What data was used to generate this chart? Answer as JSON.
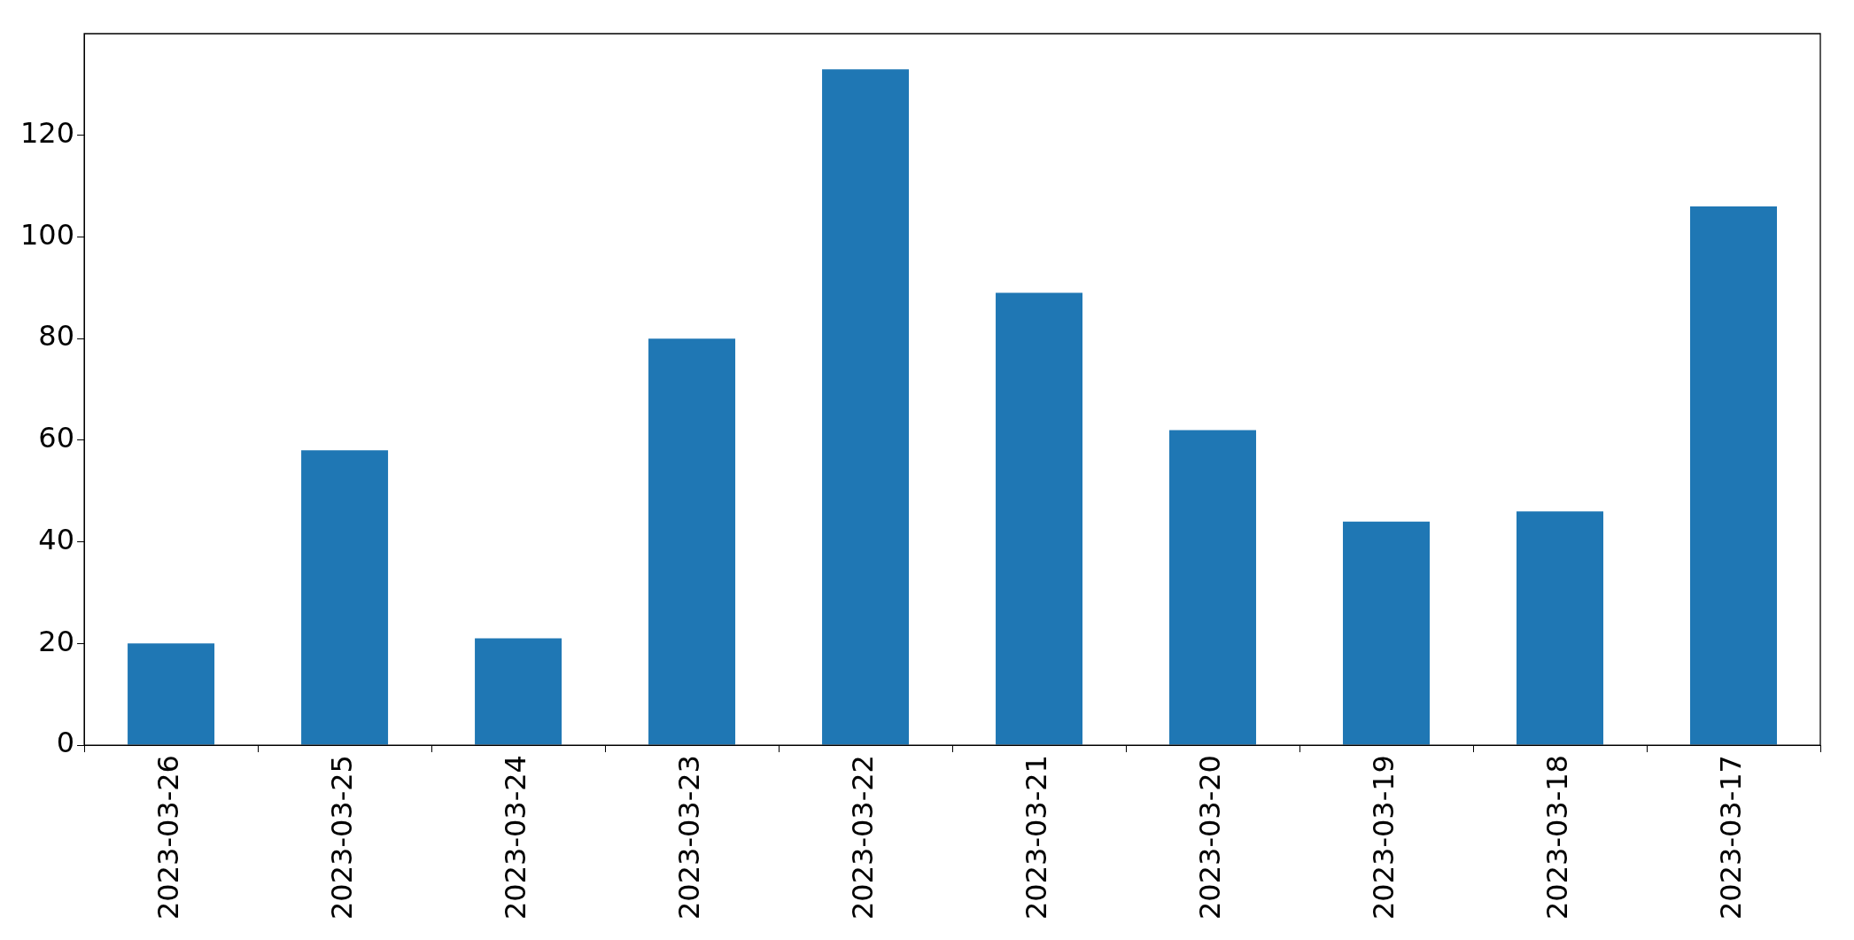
{
  "chart_data": {
    "type": "bar",
    "categories": [
      "2023-03-26",
      "2023-03-25",
      "2023-03-24",
      "2023-03-23",
      "2023-03-22",
      "2023-03-21",
      "2023-03-20",
      "2023-03-19",
      "2023-03-18",
      "2023-03-17"
    ],
    "values": [
      20,
      58,
      21,
      80,
      133,
      89,
      62,
      44,
      46,
      106
    ],
    "color": "#1f77b4",
    "ylim": [
      0,
      140
    ],
    "yticks": [
      0,
      20,
      40,
      60,
      80,
      100,
      120
    ],
    "grid": false,
    "legend": false
  }
}
